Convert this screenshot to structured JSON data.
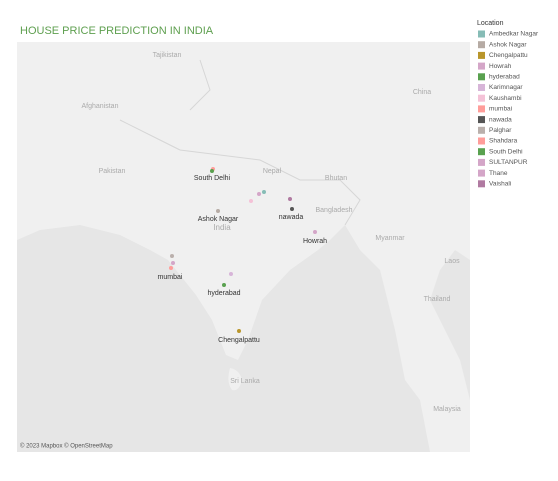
{
  "title": "HOUSE PRICE PREDICTION IN INDIA",
  "legend": {
    "title": "Location",
    "items": [
      {
        "name": "Ambedkar Nagar",
        "color": "#86bcb6"
      },
      {
        "name": "Ashok Nagar",
        "color": "#b6aba4"
      },
      {
        "name": "Chengalpattu",
        "color": "#b9962b"
      },
      {
        "name": "Howrah",
        "color": "#d4a6c8"
      },
      {
        "name": "hyderabad",
        "color": "#59a14f"
      },
      {
        "name": "Karimnagar",
        "color": "#d7b5d8"
      },
      {
        "name": "Kaushambi",
        "color": "#f4c2d7"
      },
      {
        "name": "mumbai",
        "color": "#ff9d9a"
      },
      {
        "name": "nawada",
        "color": "#555555"
      },
      {
        "name": "Palghar",
        "color": "#bab0ac"
      },
      {
        "name": "Shahdara",
        "color": "#ff9d9a"
      },
      {
        "name": "South Delhi",
        "color": "#59a14f"
      },
      {
        "name": "SULTANPUR",
        "color": "#d4a6c8"
      },
      {
        "name": "Thane",
        "color": "#d4a6c8"
      },
      {
        "name": "Vaishali",
        "color": "#b07aa1"
      }
    ]
  },
  "map": {
    "region_labels": [
      "Tajikistan",
      "Afghanistan",
      "Pakistan",
      "Nepal",
      "Bhutan",
      "Bangladesh",
      "India",
      "Myanmar",
      "China",
      "Laos",
      "Thailand",
      "Sri Lanka",
      "Malaysia"
    ],
    "city_labels": [
      "South Delhi",
      "Ashok Nagar",
      "nawada",
      "Howrah",
      "mumbai",
      "hyderabad",
      "Chengalpattu"
    ],
    "attribution": "© 2023 Mapbox © OpenStreetMap"
  }
}
